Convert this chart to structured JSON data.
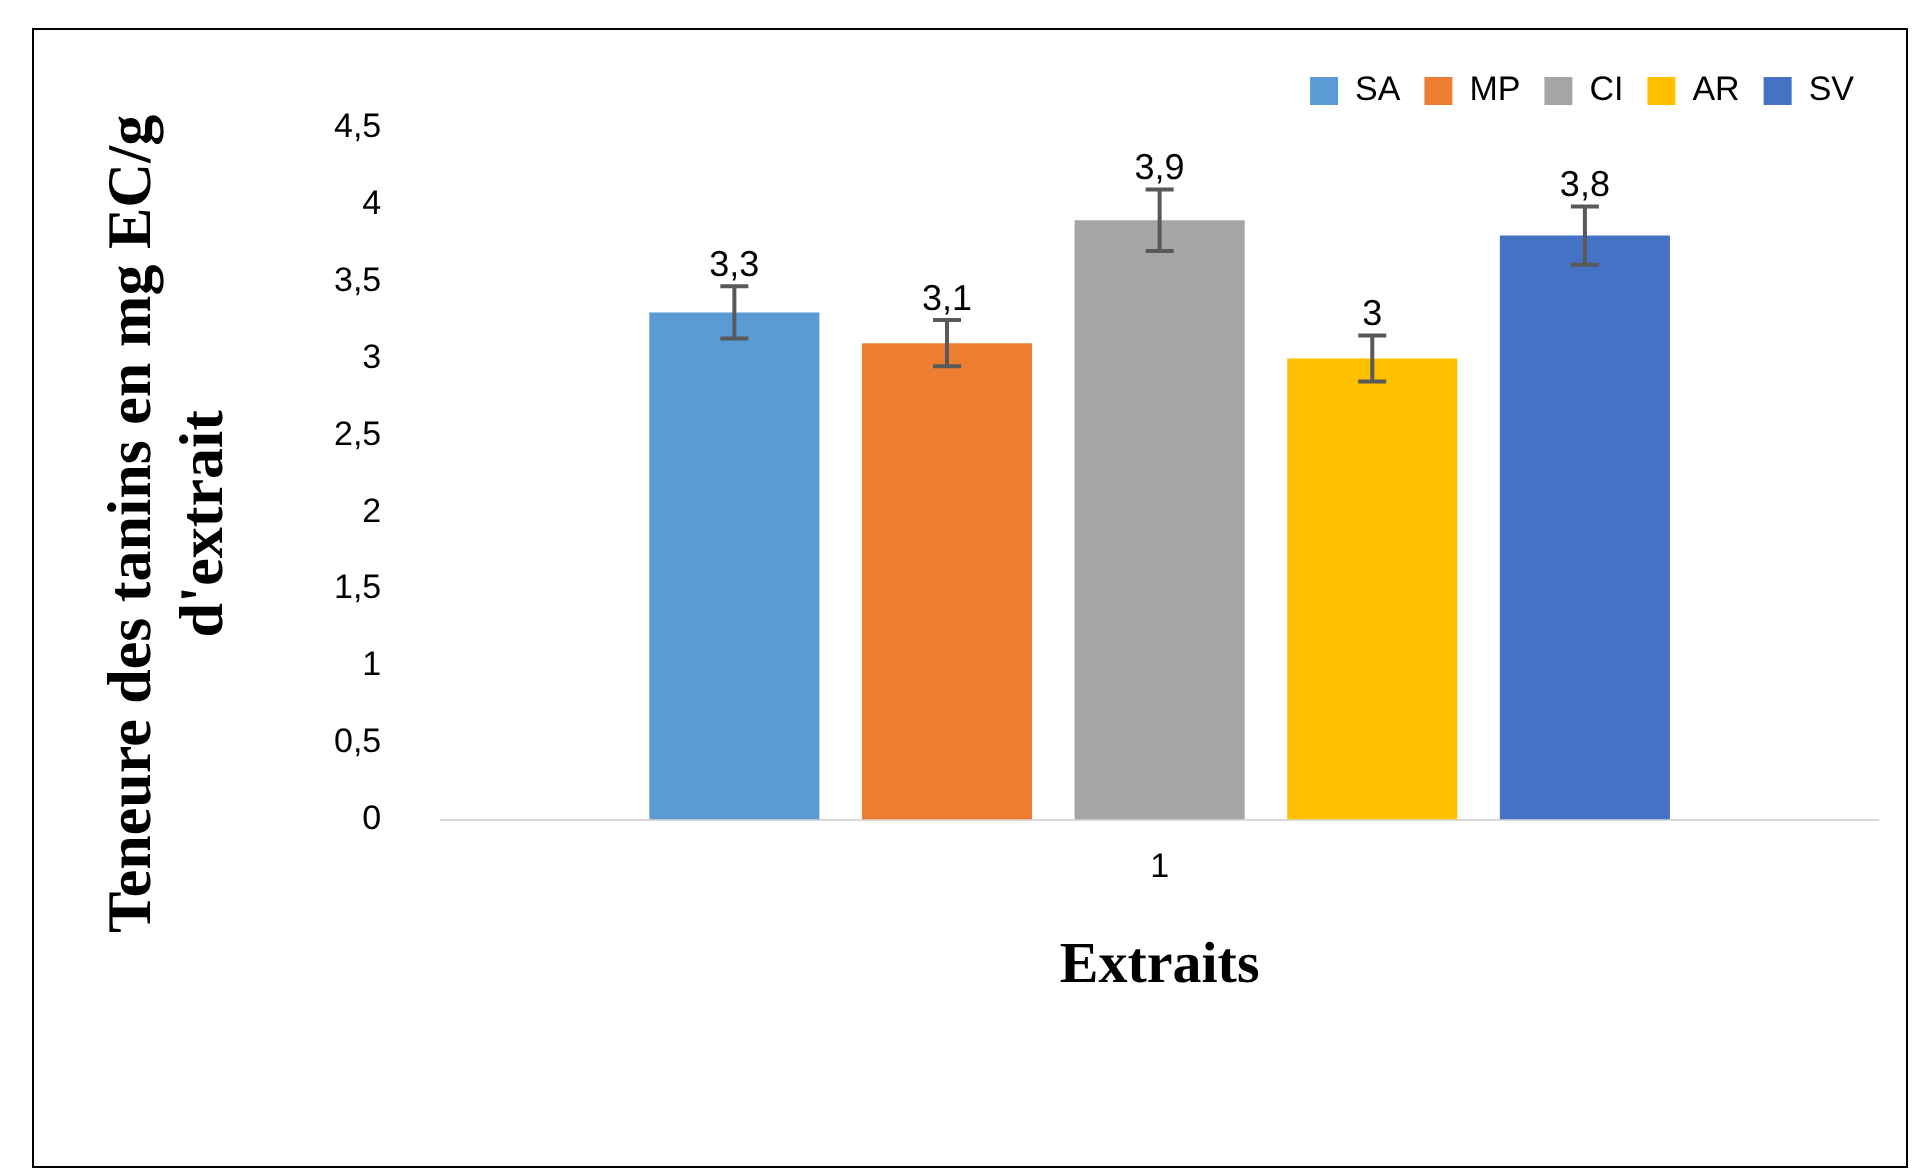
{
  "chart_data": {
    "type": "bar",
    "xlabel": "Extraits",
    "ylabel": "Teneure des tanins en mg EC/g d'extrait",
    "categories": [
      "1"
    ],
    "series": [
      {
        "name": "SA",
        "color": "#5b9bd5",
        "values": [
          3.3
        ],
        "errors": [
          0.17
        ],
        "value_labels": [
          "3,3"
        ]
      },
      {
        "name": "MP",
        "color": "#ed7d31",
        "values": [
          3.1
        ],
        "errors": [
          0.15
        ],
        "value_labels": [
          "3,1"
        ]
      },
      {
        "name": "CI",
        "color": "#a5a5a5",
        "values": [
          3.9
        ],
        "errors": [
          0.2
        ],
        "value_labels": [
          "3,9"
        ]
      },
      {
        "name": "AR",
        "color": "#ffc000",
        "values": [
          3.0
        ],
        "errors": [
          0.15
        ],
        "value_labels": [
          "3"
        ]
      },
      {
        "name": "SV",
        "color": "#4472c4",
        "values": [
          3.8
        ],
        "errors": [
          0.19
        ],
        "value_labels": [
          "3,8"
        ]
      }
    ],
    "ylim": [
      0,
      4.5
    ],
    "yticks": [
      0,
      {
        "value": 0.5,
        "label": "0,5"
      },
      1,
      {
        "value": 1.5,
        "label": "1,5"
      },
      2,
      {
        "value": 2.5,
        "label": "2,5"
      },
      3,
      {
        "value": 3.5,
        "label": "3,5"
      },
      4,
      {
        "value": 4.5,
        "label": "4,5"
      }
    ],
    "grid": false,
    "legend": "top right"
  }
}
